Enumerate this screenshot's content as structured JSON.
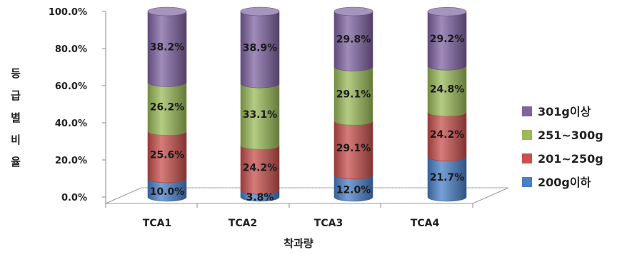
{
  "chart_data": {
    "type": "bar",
    "stacked": true,
    "categories": [
      "TCA1",
      "TCA2",
      "TCA3",
      "TCA4"
    ],
    "series": [
      {
        "name": "200g이하",
        "color": "#4a80c8",
        "values": [
          10.0,
          3.8,
          12.0,
          21.7
        ]
      },
      {
        "name": "201~250g",
        "color": "#c8504d",
        "values": [
          25.6,
          24.2,
          29.1,
          24.2
        ]
      },
      {
        "name": "251~300g",
        "color": "#9bbb59",
        "values": [
          26.2,
          33.1,
          29.1,
          24.8
        ]
      },
      {
        "name": "301g이상",
        "color": "#8064a2",
        "values": [
          38.2,
          38.9,
          29.8,
          29.2
        ]
      }
    ],
    "data_labels": [
      [
        "10.0%",
        "3.8%",
        "12.0%",
        "21.7%"
      ],
      [
        "25.6%",
        "24.2%",
        "29.1%",
        "24.2%"
      ],
      [
        "26.2%",
        "33.1%",
        "29.1%",
        "24.8%"
      ],
      [
        "38.2%",
        "38.9%",
        "29.8%",
        "29.2%"
      ]
    ],
    "y_ticks": [
      "0.0%",
      "20.0%",
      "40.0%",
      "60.0%",
      "80.0%",
      "100.0%"
    ],
    "ylim": [
      0,
      100
    ],
    "xlabel": "착과량",
    "ylabel": "등급별비율",
    "legend_position": "right",
    "grid": false
  }
}
